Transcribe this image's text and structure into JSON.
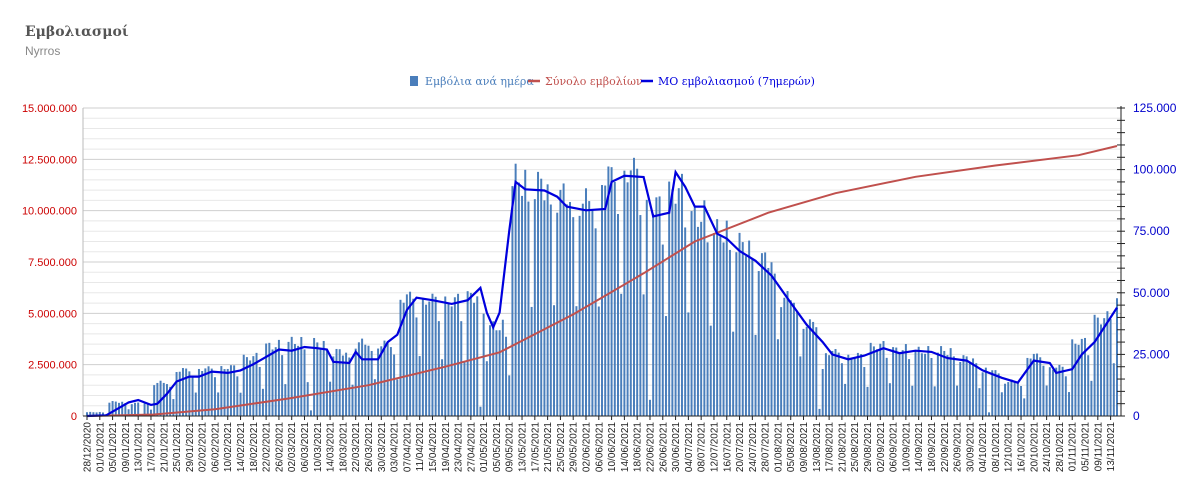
{
  "header": {
    "title": "Εμβολιασμοί",
    "subtitle": "Nyrros"
  },
  "chart_data": {
    "type": "bar",
    "title": "Εμβολιασμοί",
    "legend": {
      "placement": "top",
      "entries": [
        {
          "label": "Εμβόλια ανά ημέρα",
          "color": "#4a7ebb",
          "kind": "bar"
        },
        {
          "label": "Σύνολο εμβολίων",
          "color": "#c0504d",
          "kind": "line"
        },
        {
          "label": "ΜΟ εμβολιασμού (7ημερών)",
          "color": "#0000dd",
          "kind": "line"
        }
      ]
    },
    "y_left": {
      "ylim": [
        0,
        15000000
      ],
      "ticks": [
        "0",
        "2.500.000",
        "5.000.000",
        "7.500.000",
        "10.000.000",
        "12.500.000",
        "15.000.000"
      ],
      "color": "#cc0000"
    },
    "y_right": {
      "ylim": [
        0,
        125000
      ],
      "ticks": [
        "0",
        "25.000",
        "50.000",
        "75.000",
        "100.000",
        "125.000"
      ],
      "color": "#0000cc"
    },
    "x_ticks": [
      "28/12/2020",
      "01/01/2021",
      "05/01/2021",
      "09/01/2021",
      "13/01/2021",
      "17/01/2021",
      "21/01/2021",
      "25/01/2021",
      "29/01/2021",
      "02/02/2021",
      "06/02/2021",
      "10/02/2021",
      "14/02/2021",
      "18/02/2021",
      "22/02/2021",
      "26/02/2021",
      "02/03/2021",
      "06/03/2021",
      "10/03/2021",
      "14/03/2021",
      "18/03/2021",
      "22/03/2021",
      "26/03/2021",
      "30/03/2021",
      "03/04/2021",
      "07/04/2021",
      "11/04/2021",
      "15/04/2021",
      "19/04/2021",
      "23/04/2021",
      "27/04/2021",
      "01/05/2021",
      "05/05/2021",
      "09/05/2021",
      "13/05/2021",
      "17/05/2021",
      "21/05/2021",
      "25/05/2021",
      "29/05/2021",
      "02/06/2021",
      "06/06/2021",
      "10/06/2021",
      "14/06/2021",
      "18/06/2021",
      "22/06/2021",
      "26/06/2021",
      "30/06/2021",
      "04/07/2021",
      "08/07/2021",
      "12/07/2021",
      "16/07/2021",
      "20/07/2021",
      "24/07/2021",
      "28/07/2021",
      "01/08/2021",
      "05/08/2021",
      "09/08/2021",
      "13/08/2021",
      "17/08/2021",
      "21/08/2021",
      "25/08/2021",
      "29/08/2021",
      "02/09/2021",
      "06/09/2021",
      "10/09/2021",
      "14/09/2021",
      "18/09/2021",
      "22/09/2021",
      "26/09/2021",
      "30/09/2021",
      "04/10/2021",
      "08/10/2021",
      "12/10/2021",
      "16/10/2021",
      "20/10/2021",
      "24/10/2021",
      "28/10/2021",
      "01/11/2021",
      "05/11/2021",
      "09/11/2021",
      "13/11/2021"
    ],
    "start_date": "28/12/2020",
    "daily_vaccinations_weekly": [
      {
        "week_of": "28/12/2020",
        "value": 1500
      },
      {
        "week_of": "04/01/2021",
        "value": 5500
      },
      {
        "week_of": "11/01/2021",
        "value": 5000
      },
      {
        "week_of": "18/01/2021",
        "value": 13000
      },
      {
        "week_of": "25/01/2021",
        "value": 18000
      },
      {
        "week_of": "01/02/2021",
        "value": 18500
      },
      {
        "week_of": "08/02/2021",
        "value": 19000
      },
      {
        "week_of": "15/02/2021",
        "value": 23000
      },
      {
        "week_of": "22/02/2021",
        "value": 27500
      },
      {
        "week_of": "01/03/2021",
        "value": 29000
      },
      {
        "week_of": "08/03/2021",
        "value": 28500
      },
      {
        "week_of": "15/03/2021",
        "value": 25000
      },
      {
        "week_of": "22/03/2021",
        "value": 28500
      },
      {
        "week_of": "29/03/2021",
        "value": 28000
      },
      {
        "week_of": "05/04/2021",
        "value": 46500
      },
      {
        "week_of": "12/04/2021",
        "value": 45500
      },
      {
        "week_of": "19/04/2021",
        "value": 45000
      },
      {
        "week_of": "26/04/2021",
        "value": 47000
      },
      {
        "week_of": "03/05/2021",
        "value": 35000
      },
      {
        "week_of": "10/05/2021",
        "value": 92000
      },
      {
        "week_of": "17/05/2021",
        "value": 90000
      },
      {
        "week_of": "24/05/2021",
        "value": 86000
      },
      {
        "week_of": "31/05/2021",
        "value": 84000
      },
      {
        "week_of": "07/06/2021",
        "value": 94000
      },
      {
        "week_of": "14/06/2021",
        "value": 96000
      },
      {
        "week_of": "21/06/2021",
        "value": 82000
      },
      {
        "week_of": "28/06/2021",
        "value": 88000
      },
      {
        "week_of": "05/07/2021",
        "value": 78000
      },
      {
        "week_of": "12/07/2021",
        "value": 72000
      },
      {
        "week_of": "19/07/2021",
        "value": 67000
      },
      {
        "week_of": "26/07/2021",
        "value": 61000
      },
      {
        "week_of": "02/08/2021",
        "value": 46000
      },
      {
        "week_of": "09/08/2021",
        "value": 36000
      },
      {
        "week_of": "16/08/2021",
        "value": 25000
      },
      {
        "week_of": "23/08/2021",
        "value": 23500
      },
      {
        "week_of": "30/08/2021",
        "value": 27500
      },
      {
        "week_of": "06/09/2021",
        "value": 26000
      },
      {
        "week_of": "13/09/2021",
        "value": 25500
      },
      {
        "week_of": "20/09/2021",
        "value": 25500
      },
      {
        "week_of": "27/09/2021",
        "value": 22500
      },
      {
        "week_of": "04/10/2021",
        "value": 18500
      },
      {
        "week_of": "11/10/2021",
        "value": 13500
      },
      {
        "week_of": "18/10/2021",
        "value": 23500
      },
      {
        "week_of": "25/10/2021",
        "value": 19000
      },
      {
        "week_of": "01/11/2021",
        "value": 29000
      },
      {
        "week_of": "08/11/2021",
        "value": 38000
      },
      {
        "week_of": "13/11/2021",
        "value": 45000
      }
    ],
    "moving_average_7d": [
      {
        "date": "28/12/2020",
        "value": 0
      },
      {
        "date": "03/01/2021",
        "value": 300
      },
      {
        "date": "06/01/2021",
        "value": 2500
      },
      {
        "date": "10/01/2021",
        "value": 5500
      },
      {
        "date": "13/01/2021",
        "value": 6500
      },
      {
        "date": "17/01/2021",
        "value": 4500
      },
      {
        "date": "19/01/2021",
        "value": 5000
      },
      {
        "date": "22/01/2021",
        "value": 9000
      },
      {
        "date": "25/01/2021",
        "value": 14000
      },
      {
        "date": "29/01/2021",
        "value": 16000
      },
      {
        "date": "01/02/2021",
        "value": 16000
      },
      {
        "date": "05/02/2021",
        "value": 18000
      },
      {
        "date": "10/02/2021",
        "value": 17500
      },
      {
        "date": "14/02/2021",
        "value": 18500
      },
      {
        "date": "18/02/2021",
        "value": 21000
      },
      {
        "date": "22/02/2021",
        "value": 24000
      },
      {
        "date": "26/02/2021",
        "value": 27000
      },
      {
        "date": "02/03/2021",
        "value": 26500
      },
      {
        "date": "06/03/2021",
        "value": 28000
      },
      {
        "date": "10/03/2021",
        "value": 27500
      },
      {
        "date": "13/03/2021",
        "value": 27000
      },
      {
        "date": "15/03/2021",
        "value": 22000
      },
      {
        "date": "20/03/2021",
        "value": 21500
      },
      {
        "date": "22/03/2021",
        "value": 26000
      },
      {
        "date": "24/03/2021",
        "value": 23000
      },
      {
        "date": "29/03/2021",
        "value": 23000
      },
      {
        "date": "01/04/2021",
        "value": 30000
      },
      {
        "date": "04/04/2021",
        "value": 33000
      },
      {
        "date": "07/04/2021",
        "value": 43000
      },
      {
        "date": "10/04/2021",
        "value": 48000
      },
      {
        "date": "15/04/2021",
        "value": 47000
      },
      {
        "date": "21/04/2021",
        "value": 45500
      },
      {
        "date": "26/04/2021",
        "value": 47000
      },
      {
        "date": "30/04/2021",
        "value": 52000
      },
      {
        "date": "02/05/2021",
        "value": 42000
      },
      {
        "date": "04/05/2021",
        "value": 36000
      },
      {
        "date": "06/05/2021",
        "value": 42000
      },
      {
        "date": "09/05/2021",
        "value": 75000
      },
      {
        "date": "11/05/2021",
        "value": 95000
      },
      {
        "date": "14/05/2021",
        "value": 92000
      },
      {
        "date": "20/05/2021",
        "value": 91500
      },
      {
        "date": "24/05/2021",
        "value": 89000
      },
      {
        "date": "27/05/2021",
        "value": 85000
      },
      {
        "date": "02/06/2021",
        "value": 83500
      },
      {
        "date": "08/06/2021",
        "value": 84000
      },
      {
        "date": "10/06/2021",
        "value": 95000
      },
      {
        "date": "14/06/2021",
        "value": 97500
      },
      {
        "date": "20/06/2021",
        "value": 97000
      },
      {
        "date": "23/06/2021",
        "value": 81000
      },
      {
        "date": "28/06/2021",
        "value": 82500
      },
      {
        "date": "30/06/2021",
        "value": 99000
      },
      {
        "date": "03/07/2021",
        "value": 93000
      },
      {
        "date": "06/07/2021",
        "value": 85000
      },
      {
        "date": "09/07/2021",
        "value": 85000
      },
      {
        "date": "13/07/2021",
        "value": 74000
      },
      {
        "date": "16/07/2021",
        "value": 72000
      },
      {
        "date": "20/07/2021",
        "value": 67000
      },
      {
        "date": "25/07/2021",
        "value": 63000
      },
      {
        "date": "30/07/2021",
        "value": 57000
      },
      {
        "date": "05/08/2021",
        "value": 46000
      },
      {
        "date": "10/08/2021",
        "value": 37000
      },
      {
        "date": "15/08/2021",
        "value": 30000
      },
      {
        "date": "18/08/2021",
        "value": 25000
      },
      {
        "date": "23/08/2021",
        "value": 23000
      },
      {
        "date": "28/08/2021",
        "value": 24500
      },
      {
        "date": "03/09/2021",
        "value": 27500
      },
      {
        "date": "08/09/2021",
        "value": 25500
      },
      {
        "date": "13/09/2021",
        "value": 26500
      },
      {
        "date": "18/09/2021",
        "value": 26000
      },
      {
        "date": "23/09/2021",
        "value": 23500
      },
      {
        "date": "29/09/2021",
        "value": 22500
      },
      {
        "date": "04/10/2021",
        "value": 18500
      },
      {
        "date": "10/10/2021",
        "value": 15500
      },
      {
        "date": "15/10/2021",
        "value": 13500
      },
      {
        "date": "20/10/2021",
        "value": 22500
      },
      {
        "date": "25/10/2021",
        "value": 21500
      },
      {
        "date": "27/10/2021",
        "value": 17500
      },
      {
        "date": "01/11/2021",
        "value": 19000
      },
      {
        "date": "04/11/2021",
        "value": 25000
      },
      {
        "date": "08/11/2021",
        "value": 30000
      },
      {
        "date": "12/11/2021",
        "value": 38000
      },
      {
        "date": "15/11/2021",
        "value": 44000
      }
    ],
    "cumulative_total": [
      {
        "date": "28/12/2020",
        "value": 0
      },
      {
        "date": "18/01/2021",
        "value": 75000
      },
      {
        "date": "06/02/2021",
        "value": 325000
      },
      {
        "date": "01/03/2021",
        "value": 850000
      },
      {
        "date": "26/03/2021",
        "value": 1500000
      },
      {
        "date": "19/04/2021",
        "value": 2400000
      },
      {
        "date": "06/05/2021",
        "value": 3100000
      },
      {
        "date": "29/05/2021",
        "value": 4950000
      },
      {
        "date": "20/06/2021",
        "value": 6950000
      },
      {
        "date": "06/07/2021",
        "value": 8500000
      },
      {
        "date": "29/07/2021",
        "value": 9900000
      },
      {
        "date": "19/08/2021",
        "value": 10850000
      },
      {
        "date": "13/09/2021",
        "value": 11650000
      },
      {
        "date": "08/10/2021",
        "value": 12200000
      },
      {
        "date": "03/11/2021",
        "value": 12700000
      },
      {
        "date": "15/11/2021",
        "value": 13150000
      }
    ]
  }
}
